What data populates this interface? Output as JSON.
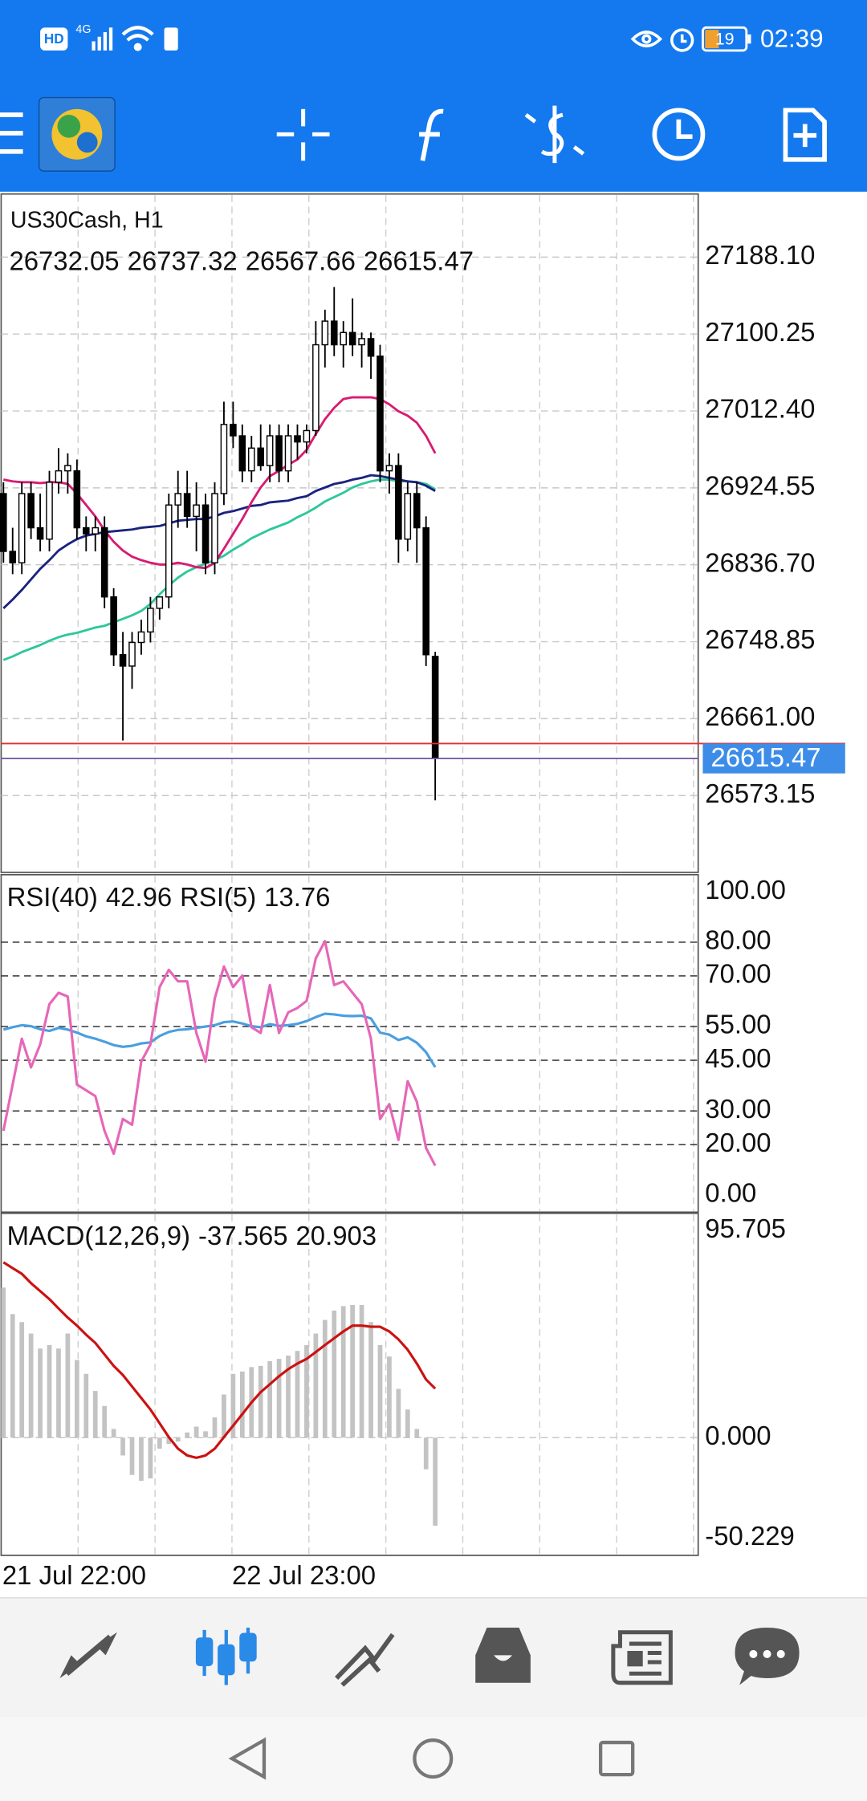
{
  "status_bar": {
    "hd": "HD",
    "network": "4G",
    "battery": "19",
    "time": "02:39"
  },
  "chart_data": [
    {
      "type": "candlestick",
      "title": "US30Cash, H1",
      "categories": [
        "21 Jul 22:00",
        null,
        null,
        null,
        null,
        null,
        null,
        null,
        null,
        null,
        null,
        null,
        null,
        null,
        null,
        null,
        null,
        null,
        null,
        null,
        null,
        null,
        null,
        null,
        null,
        "22 Jul 23:00",
        null,
        null,
        null,
        null,
        null,
        null,
        null,
        null,
        null,
        null,
        null,
        null,
        null,
        null,
        null,
        null,
        null,
        null,
        null,
        null,
        null,
        null
      ],
      "open": [
        26918,
        26852,
        26839,
        26918,
        26879,
        26866,
        26931,
        26944,
        26944,
        26879,
        26872,
        26879,
        26800,
        26734,
        26721,
        26748,
        26760,
        26787,
        26800,
        26905,
        26918,
        26892,
        26905,
        26839,
        26918,
        26997,
        26984,
        26944,
        26970,
        26950,
        26984,
        26944,
        26984,
        26977,
        26990,
        27088,
        27115,
        27088,
        27102,
        27088,
        27095,
        27075,
        26944,
        26950,
        26866,
        26918,
        26879,
        26732.05
      ],
      "high": [
        26931,
        26879,
        26931,
        26931,
        26918,
        26944,
        26970,
        26964,
        26957,
        26892,
        26892,
        26892,
        26810,
        26760,
        26760,
        26774,
        26800,
        26800,
        26918,
        26944,
        26944,
        26931,
        26918,
        26931,
        27023,
        27023,
        26997,
        26984,
        26997,
        26997,
        26997,
        26997,
        26997,
        26997,
        27115,
        27128,
        27154,
        27115,
        27141,
        27102,
        27102,
        27088,
        26964,
        26964,
        26931,
        26931,
        26892,
        26737.32
      ],
      "low": [
        26839,
        26826,
        26826,
        26866,
        26852,
        26852,
        26918,
        26918,
        26866,
        26852,
        26852,
        26787,
        26721,
        26636,
        26695,
        26734,
        26748,
        26774,
        26787,
        26879,
        26879,
        26852,
        26826,
        26826,
        26905,
        26970,
        26931,
        26931,
        26944,
        26931,
        26931,
        26931,
        26957,
        26964,
        26984,
        27062,
        27075,
        27062,
        27075,
        27062,
        27049,
        26931,
        26918,
        26839,
        26852,
        26839,
        26721,
        26567.66
      ],
      "close": [
        26852,
        26839,
        26918,
        26879,
        26866,
        26931,
        26944,
        26950,
        26879,
        26872,
        26879,
        26800,
        26734,
        26721,
        26748,
        26760,
        26787,
        26800,
        26905,
        26918,
        26892,
        26905,
        26839,
        26918,
        26997,
        26984,
        26944,
        26970,
        26950,
        26984,
        26944,
        26984,
        26977,
        26990,
        27088,
        27115,
        27088,
        27102,
        27088,
        27095,
        27075,
        26944,
        26950,
        26866,
        26918,
        26879,
        26734,
        26615.47
      ],
      "up_color": "#ffffff",
      "down_color": "#000000",
      "last_price_color": "#3d8de8",
      "series": [
        {
          "color": "#2ec79a",
          "values": [
            26728,
            26732,
            26737,
            26741,
            26745,
            26750,
            26754,
            26757,
            26759,
            26762,
            26765,
            26767,
            26771,
            26775,
            26779,
            26784,
            26792,
            26803,
            26813,
            26822,
            26829,
            26834,
            26838,
            26842,
            26847,
            26854,
            26860,
            26867,
            26872,
            26877,
            26881,
            26885,
            26891,
            26896,
            26902,
            26909,
            26914,
            26919,
            26925,
            26929,
            26932,
            26934,
            26934,
            26932,
            26932,
            26931,
            26929,
            26923
          ]
        },
        {
          "color": "#1a237e",
          "values": [
            26787,
            26797,
            26808,
            26820,
            26832,
            26842,
            26853,
            26860,
            26866,
            26870,
            26872,
            26874,
            26875,
            26876,
            26877,
            26879,
            26880,
            26881,
            26884,
            26887,
            26888,
            26889,
            26889,
            26892,
            26896,
            26898,
            26901,
            26904,
            26905,
            26908,
            26909,
            26910,
            26913,
            26915,
            26921,
            26925,
            26929,
            26931,
            26934,
            26936,
            26939,
            26938,
            26936,
            26934,
            26932,
            26931,
            26927,
            26921
          ]
        },
        {
          "color": "#d81b72",
          "values": [
            26934,
            26932,
            26931,
            26931,
            26930,
            26931,
            26931,
            26929,
            26918,
            26905,
            26892,
            26876,
            26863,
            26853,
            26846,
            26842,
            26839,
            26837,
            26837,
            26839,
            26837,
            26834,
            26833,
            26839,
            26855,
            26872,
            26889,
            26908,
            26925,
            26938,
            26944,
            26951,
            26957,
            26968,
            26986,
            27003,
            27016,
            27026,
            27028,
            27028,
            27028,
            27026,
            27020,
            27012,
            27007,
            26999,
            26984,
            26964
          ]
        }
      ],
      "ylim": [
        26485.4,
        27260.2
      ],
      "yticks": [
        {
          "value": 27188.1,
          "label": "27188.10"
        },
        27100.25,
        {
          "value": 27012.4,
          "label": "27012.40"
        },
        26924.55,
        {
          "value": 26836.7,
          "label": "26836.70"
        },
        26748.85,
        {
          "value": 26661,
          "label": "26661.00"
        },
        26573.15
      ],
      "grid": true
    },
    {
      "type": "line",
      "series": [
        {
          "name": "RSI(40)",
          "color": "#4a9fe0",
          "values": [
            54.1,
            54.8,
            55.4,
            55.1,
            54.2,
            53.7,
            54.6,
            54.1,
            53.2,
            52.1,
            51.4,
            50.5,
            49.5,
            49,
            49.3,
            50,
            50.3,
            52.2,
            53.4,
            54,
            54.2,
            54.6,
            55,
            55.4,
            56.3,
            56.5,
            55.9,
            55.1,
            54.8,
            55.7,
            55.2,
            55.4,
            55.8,
            56.6,
            57.8,
            58.8,
            58.6,
            58.2,
            58.1,
            58.2,
            57.4,
            53.2,
            52.6,
            51,
            51.8,
            50.2,
            47.4,
            42.96
          ]
        },
        {
          "name": "RSI(5)",
          "color": "#e667b8",
          "values": [
            24.1,
            37.8,
            51.4,
            42.9,
            49.7,
            61.6,
            65,
            63.9,
            37.8,
            36.1,
            34.4,
            24.1,
            17.3,
            27.6,
            25.9,
            44.6,
            49.7,
            66.7,
            71.8,
            68.4,
            68.4,
            53.1,
            44.6,
            63.3,
            72.8,
            66.7,
            70.1,
            54.8,
            53.1,
            67.3,
            53.1,
            59.2,
            60.5,
            62.6,
            75.2,
            80.3,
            67.3,
            68.4,
            65,
            61.6,
            51.4,
            27.6,
            32,
            21.4,
            38.8,
            32.7,
            19,
            13.76
          ]
        }
      ],
      "ylim": [
        0,
        100
      ],
      "yticks": [
        {
          "value": 100,
          "label": "100.00"
        },
        {
          "value": 80,
          "label": "80.00"
        },
        {
          "value": 70,
          "label": "70.00"
        },
        {
          "value": 55,
          "label": "55.00"
        },
        {
          "value": 45,
          "label": "45.00"
        },
        {
          "value": 30,
          "label": "30.00"
        },
        {
          "value": 20,
          "label": "20.00"
        },
        {
          "value": 0,
          "label": "0.00"
        }
      ],
      "grid": true
    },
    {
      "type": "macd",
      "series": [
        {
          "name": "MACD(12,26,9)",
          "color": "#c3c3c3",
          "values": [
            64,
            52.7,
            49.3,
            44.4,
            38,
            39.5,
            38,
            44.4,
            33.1,
            27.2,
            19.9,
            13.5,
            3.7,
            -7.6,
            -15.9,
            -18.4,
            -17.4,
            -4.7,
            -2.7,
            -1.7,
            2.2,
            4.7,
            2.7,
            8.6,
            18.4,
            27.2,
            28.2,
            30.1,
            30.6,
            32.6,
            33.6,
            35,
            37,
            39.5,
            44.4,
            50.2,
            54.2,
            56.1,
            56.6,
            56.6,
            49.3,
            39.5,
            34.6,
            20.8,
            12,
            3.7,
            -13.5,
            -37.565
          ]
        },
        {
          "color": "#cc1111",
          "values": [
            74.8,
            72.3,
            69.9,
            65.9,
            62.5,
            59.1,
            55.1,
            51.2,
            47.8,
            43.9,
            40.4,
            35.5,
            30.6,
            26.7,
            21.8,
            16.9,
            12,
            6.1,
            0.2,
            -4.7,
            -7.6,
            -8.6,
            -7.6,
            -4.7,
            0.2,
            5.1,
            10,
            15,
            19.4,
            22.8,
            26.2,
            29.2,
            31.6,
            33.6,
            36.5,
            39.5,
            42.4,
            45.3,
            47.8,
            47.8,
            47.3,
            47.3,
            45.3,
            41.9,
            37.5,
            31.6,
            24.8,
            20.903
          ]
        }
      ],
      "ylim": [
        -50.229,
        95.705
      ],
      "yticks": [
        95.705,
        {
          "value": 0,
          "label": "0.000"
        },
        -50.229
      ],
      "grid": true
    }
  ]
}
